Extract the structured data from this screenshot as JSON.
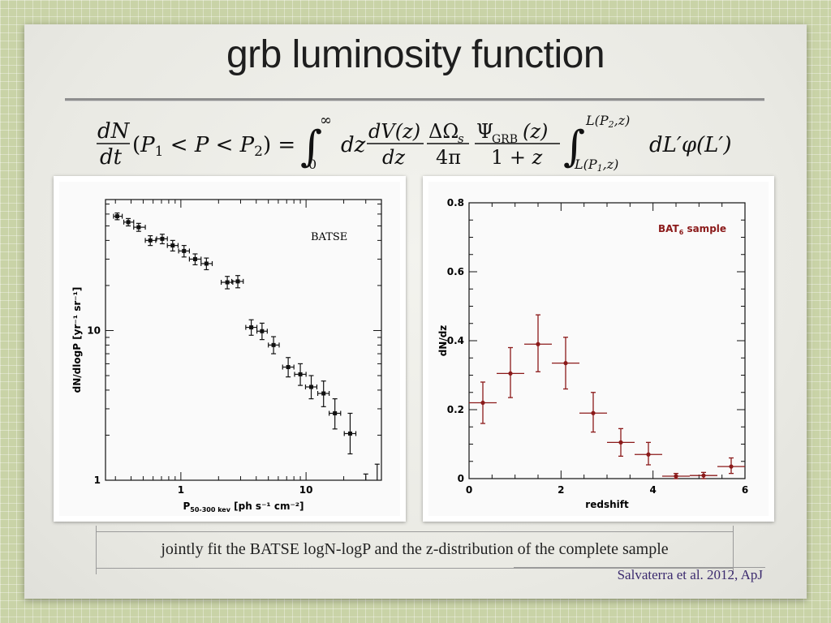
{
  "slide": {
    "title": "grb luminosity function",
    "caption": "jointly fit the BATSE logN-logP and the z-distribution of  the complete sample",
    "citation": "Salvaterra et al. 2012, ApJ"
  },
  "colors": {
    "background_grid": "#c9d3a7",
    "slide": "#ececE6",
    "left_series": "#111111",
    "right_series": "#8b1a1a",
    "citation": "#3b2a6e"
  },
  "chart_data": [
    {
      "type": "scatter",
      "title": "",
      "annotation": "BATSE",
      "xlabel_main": "P",
      "xlabel_sub": "50-300 kev",
      "xlabel_units": "[ph s⁻¹ cm⁻²]",
      "ylabel": "dN/dlogP [yr⁻¹ sr⁻¹]",
      "xscale": "log",
      "yscale": "log",
      "xlim": [
        0.25,
        40
      ],
      "ylim": [
        1,
        75
      ],
      "xticks": [
        {
          "value": 1,
          "label": "1"
        },
        {
          "value": 10,
          "label": "10"
        }
      ],
      "yticks": [
        {
          "value": 1,
          "label": "1"
        },
        {
          "value": 10,
          "label": "10"
        }
      ],
      "series": [
        {
          "points": [
            {
              "x": 0.31,
              "y": 58,
              "xlo": 0.29,
              "xhi": 0.34,
              "ylo": 55,
              "yhi": 61
            },
            {
              "x": 0.38,
              "y": 53,
              "xlo": 0.35,
              "xhi": 0.42,
              "ylo": 50,
              "yhi": 56
            },
            {
              "x": 0.46,
              "y": 49,
              "xlo": 0.42,
              "xhi": 0.52,
              "ylo": 46,
              "yhi": 52
            },
            {
              "x": 0.57,
              "y": 40,
              "xlo": 0.52,
              "xhi": 0.63,
              "ylo": 37,
              "yhi": 43
            },
            {
              "x": 0.71,
              "y": 41,
              "xlo": 0.64,
              "xhi": 0.78,
              "ylo": 38,
              "yhi": 44
            },
            {
              "x": 0.86,
              "y": 37,
              "xlo": 0.78,
              "xhi": 0.95,
              "ylo": 34,
              "yhi": 40
            },
            {
              "x": 1.06,
              "y": 34,
              "xlo": 0.96,
              "xhi": 1.17,
              "ylo": 31,
              "yhi": 37
            },
            {
              "x": 1.3,
              "y": 30,
              "xlo": 1.17,
              "xhi": 1.45,
              "ylo": 27.5,
              "yhi": 32.5
            },
            {
              "x": 1.6,
              "y": 28,
              "xlo": 1.45,
              "xhi": 1.78,
              "ylo": 25.5,
              "yhi": 30.5
            },
            {
              "x": 2.35,
              "y": 21,
              "xlo": 2.1,
              "xhi": 2.6,
              "ylo": 19,
              "yhi": 23
            },
            {
              "x": 2.85,
              "y": 21.3,
              "xlo": 2.55,
              "xhi": 3.15,
              "ylo": 19.3,
              "yhi": 23.3
            },
            {
              "x": 3.65,
              "y": 10.5,
              "xlo": 3.3,
              "xhi": 4.05,
              "ylo": 9.3,
              "yhi": 11.8
            },
            {
              "x": 4.45,
              "y": 9.9,
              "xlo": 4.05,
              "xhi": 4.9,
              "ylo": 8.7,
              "yhi": 11.2
            },
            {
              "x": 5.5,
              "y": 8.0,
              "xlo": 5.0,
              "xhi": 6.1,
              "ylo": 7.0,
              "yhi": 9.1
            },
            {
              "x": 7.2,
              "y": 5.7,
              "xlo": 6.5,
              "xhi": 8.0,
              "ylo": 4.9,
              "yhi": 6.6
            },
            {
              "x": 9.0,
              "y": 5.1,
              "xlo": 8.1,
              "xhi": 10.0,
              "ylo": 4.3,
              "yhi": 6.0
            },
            {
              "x": 11.0,
              "y": 4.2,
              "xlo": 9.9,
              "xhi": 12.2,
              "ylo": 3.5,
              "yhi": 5.0
            },
            {
              "x": 13.8,
              "y": 3.8,
              "xlo": 12.4,
              "xhi": 15.3,
              "ylo": 3.1,
              "yhi": 4.6
            },
            {
              "x": 17.0,
              "y": 2.8,
              "xlo": 15.3,
              "xhi": 18.9,
              "ylo": 2.2,
              "yhi": 3.5
            },
            {
              "x": 22.5,
              "y": 2.05,
              "xlo": 20.2,
              "xhi": 25.0,
              "ylo": 1.5,
              "yhi": 2.8
            }
          ],
          "upper_bars": [
            {
              "x": 30.0,
              "ylo": 1.0,
              "yhi": 1.1
            },
            {
              "x": 37.0,
              "ylo": 1.0,
              "yhi": 1.28
            }
          ]
        }
      ]
    },
    {
      "type": "scatter",
      "title": "",
      "annotation_main": "BAT",
      "annotation_sub": "6",
      "annotation_tail": " sample",
      "xlabel": "redshift",
      "ylabel": "dN/dz",
      "xlim": [
        0,
        6
      ],
      "ylim": [
        0,
        0.8
      ],
      "xticks": [
        0,
        2,
        4,
        6
      ],
      "yticks": [
        0,
        0.2,
        0.4,
        0.6,
        0.8
      ],
      "ytick_labels": [
        "0",
        "0.2",
        "0.4",
        "0.6",
        "0.8"
      ],
      "series": [
        {
          "points": [
            {
              "x": 0.3,
              "y": 0.22,
              "xlo": 0.0,
              "xhi": 0.6,
              "ylo": 0.16,
              "yhi": 0.28
            },
            {
              "x": 0.9,
              "y": 0.305,
              "xlo": 0.6,
              "xhi": 1.2,
              "ylo": 0.235,
              "yhi": 0.38
            },
            {
              "x": 1.5,
              "y": 0.39,
              "xlo": 1.2,
              "xhi": 1.8,
              "ylo": 0.31,
              "yhi": 0.475
            },
            {
              "x": 2.1,
              "y": 0.335,
              "xlo": 1.8,
              "xhi": 2.4,
              "ylo": 0.26,
              "yhi": 0.41
            },
            {
              "x": 2.7,
              "y": 0.19,
              "xlo": 2.4,
              "xhi": 3.0,
              "ylo": 0.135,
              "yhi": 0.25
            },
            {
              "x": 3.3,
              "y": 0.105,
              "xlo": 3.0,
              "xhi": 3.6,
              "ylo": 0.065,
              "yhi": 0.145
            },
            {
              "x": 3.9,
              "y": 0.07,
              "xlo": 3.6,
              "xhi": 4.2,
              "ylo": 0.04,
              "yhi": 0.105
            },
            {
              "x": 4.5,
              "y": 0.007,
              "xlo": 4.2,
              "xhi": 4.8,
              "ylo": 0.0,
              "yhi": 0.015
            },
            {
              "x": 5.1,
              "y": 0.009,
              "xlo": 4.8,
              "xhi": 5.4,
              "ylo": 0.0,
              "yhi": 0.018
            },
            {
              "x": 5.7,
              "y": 0.035,
              "xlo": 5.4,
              "xhi": 6.0,
              "ylo": 0.015,
              "yhi": 0.06
            }
          ]
        }
      ]
    }
  ]
}
